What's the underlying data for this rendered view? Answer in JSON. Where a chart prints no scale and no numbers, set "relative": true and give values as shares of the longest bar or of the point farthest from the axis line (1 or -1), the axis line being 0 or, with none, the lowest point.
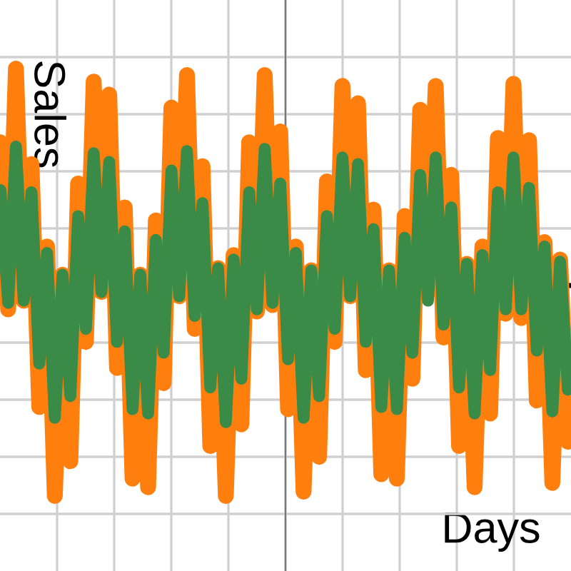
{
  "chart_data": {
    "type": "line",
    "xlabel": "Days",
    "ylabel": "Sales",
    "relative": true,
    "grid": true,
    "tick_labels": false,
    "marker": "none",
    "line_style": "solid",
    "categories": [
      null,
      null,
      null,
      null,
      null,
      null,
      null,
      null,
      null,
      null,
      null,
      null,
      null,
      null,
      null,
      null,
      null,
      null,
      null,
      null,
      null,
      null,
      null,
      null,
      null,
      null,
      null,
      null,
      null,
      null,
      null,
      null,
      null,
      null,
      null,
      null,
      null,
      null,
      null,
      null,
      null,
      null,
      null,
      null,
      null,
      null,
      null,
      null,
      null,
      null,
      null,
      null,
      null,
      null,
      null,
      null,
      null,
      null,
      null,
      null,
      null,
      null,
      null,
      null,
      null,
      null,
      null,
      null,
      null,
      null,
      null,
      null,
      null,
      null
    ],
    "series": [
      {
        "color": "#ff7f0e",
        "values": [
          0.66,
          -0.11,
          1.0,
          -0.07,
          0.56,
          -0.56,
          0.18,
          -0.97,
          0.05,
          -0.81,
          0.47,
          -0.26,
          0.94,
          -0.03,
          0.88,
          -0.38,
          0.36,
          -0.89,
          0.05,
          -0.93,
          0.3,
          -0.45,
          0.82,
          -0.05,
          0.97,
          -0.2,
          0.55,
          -0.74,
          0.08,
          -0.97,
          0.14,
          -0.64,
          0.66,
          -0.12,
          0.97,
          -0.09,
          0.71,
          -0.57,
          0.18,
          -0.95,
          0.07,
          -0.79,
          0.48,
          -0.26,
          0.92,
          -0.05,
          0.84,
          -0.39,
          0.35,
          -0.87,
          0.07,
          -0.89,
          0.32,
          -0.43,
          0.81,
          -0.03,
          0.92,
          -0.24,
          0.51,
          -0.74,
          0.1,
          -0.93,
          0.18,
          -0.59,
          0.68,
          -0.13,
          0.93,
          -0.15,
          0.67,
          -0.53,
          0.2,
          -0.91,
          0.12,
          -0.72
        ]
      },
      {
        "color": "#3a8a48",
        "values": [
          0.44,
          -0.08,
          0.64,
          -0.07,
          0.43,
          -0.36,
          0.15,
          -0.61,
          0.05,
          -0.51,
          0.32,
          -0.2,
          0.61,
          -0.03,
          0.57,
          -0.26,
          0.25,
          -0.57,
          0.05,
          -0.59,
          0.21,
          -0.31,
          0.53,
          -0.05,
          0.62,
          -0.14,
          0.38,
          -0.47,
          0.08,
          -0.63,
          0.12,
          -0.43,
          0.43,
          -0.11,
          0.63,
          -0.08,
          0.47,
          -0.34,
          0.15,
          -0.61,
          0.07,
          -0.51,
          0.32,
          -0.2,
          0.59,
          -0.05,
          0.56,
          -0.26,
          0.26,
          -0.56,
          0.07,
          -0.57,
          0.22,
          -0.31,
          0.51,
          -0.07,
          0.59,
          -0.18,
          0.36,
          -0.47,
          0.1,
          -0.59,
          0.14,
          -0.39,
          0.43,
          -0.11,
          0.59,
          -0.11,
          0.45,
          -0.3,
          0.18,
          -0.58,
          0.11,
          -0.48
        ]
      }
    ]
  }
}
